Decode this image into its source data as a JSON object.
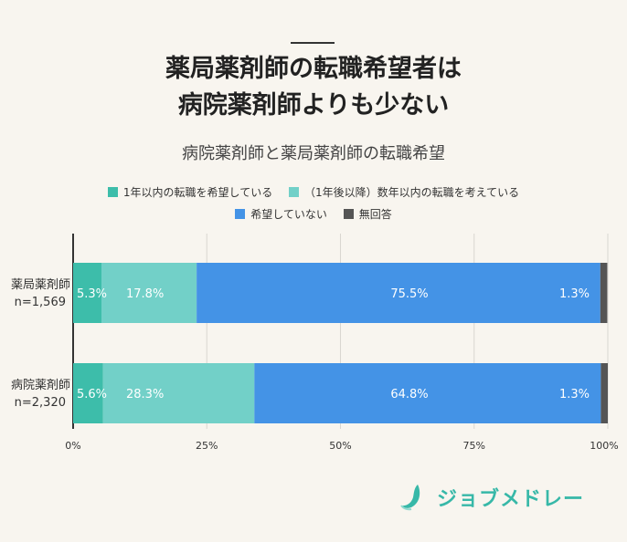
{
  "title_line1": "薬局薬剤師の転職希望者は",
  "title_line2": "病院薬剤師よりも少ない",
  "chart_data": {
    "type": "bar",
    "orientation": "horizontal",
    "stacked": true,
    "title": "病院薬剤師と薬局薬剤師の転職希望",
    "categories": [
      {
        "name": "薬局薬剤師",
        "n": "n=1,569"
      },
      {
        "name": "病院薬剤師",
        "n": "n=2,320"
      }
    ],
    "series": [
      {
        "name": "1年以内の転職を希望している",
        "color": "#3dbdaa",
        "values": [
          5.3,
          5.6
        ],
        "labels": [
          "5.3%",
          "5.6%"
        ]
      },
      {
        "name": "（1年後以降）数年以内の転職を考えている",
        "color": "#72d0c8",
        "values": [
          17.8,
          28.3
        ],
        "labels": [
          "17.8%",
          "28.3%"
        ]
      },
      {
        "name": "希望していない",
        "color": "#4493e6",
        "values": [
          75.5,
          64.8
        ],
        "labels": [
          "75.5%",
          "64.8%"
        ]
      },
      {
        "name": "無回答",
        "color": "#555555",
        "values": [
          1.3,
          1.3
        ],
        "labels": [
          "1.3%",
          "1.3%"
        ]
      }
    ],
    "x_ticks": [
      "0%",
      "25%",
      "50%",
      "75%",
      "100%"
    ],
    "xlim": [
      0,
      100
    ],
    "grid": true,
    "legend_position": "top"
  },
  "logo": {
    "text": "ジョブメドレー",
    "color": "#37b8a8"
  }
}
